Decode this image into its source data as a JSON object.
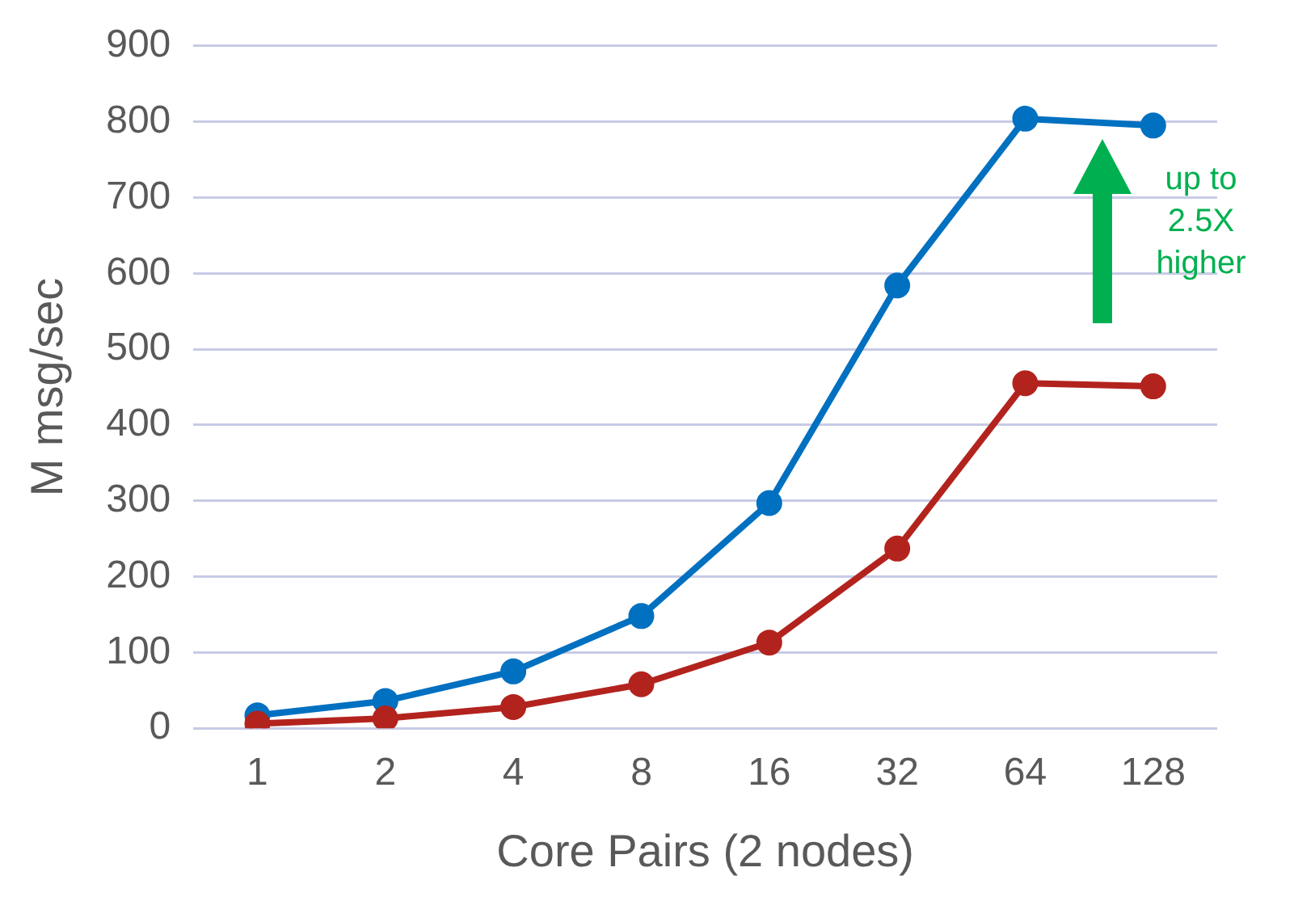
{
  "chart_data": {
    "type": "line",
    "xlabel": "Core Pairs (2 nodes)",
    "ylabel": "M msg/sec",
    "categories": [
      "1",
      "2",
      "4",
      "8",
      "16",
      "32",
      "64",
      "128"
    ],
    "series": [
      {
        "color": "#0070c0",
        "values": [
          17,
          36,
          75,
          148,
          297,
          584,
          804,
          795
        ]
      },
      {
        "color": "#b3231e",
        "values": [
          6,
          13,
          28,
          58,
          113,
          237,
          455,
          451
        ]
      }
    ],
    "ylim": [
      0,
      900
    ],
    "yticks": [
      0,
      100,
      200,
      300,
      400,
      500,
      600,
      700,
      800,
      900
    ],
    "grid": "y",
    "legend": false,
    "marker": "circle",
    "line_style": "solid",
    "annotations": [
      "up to 2.5X higher"
    ]
  }
}
